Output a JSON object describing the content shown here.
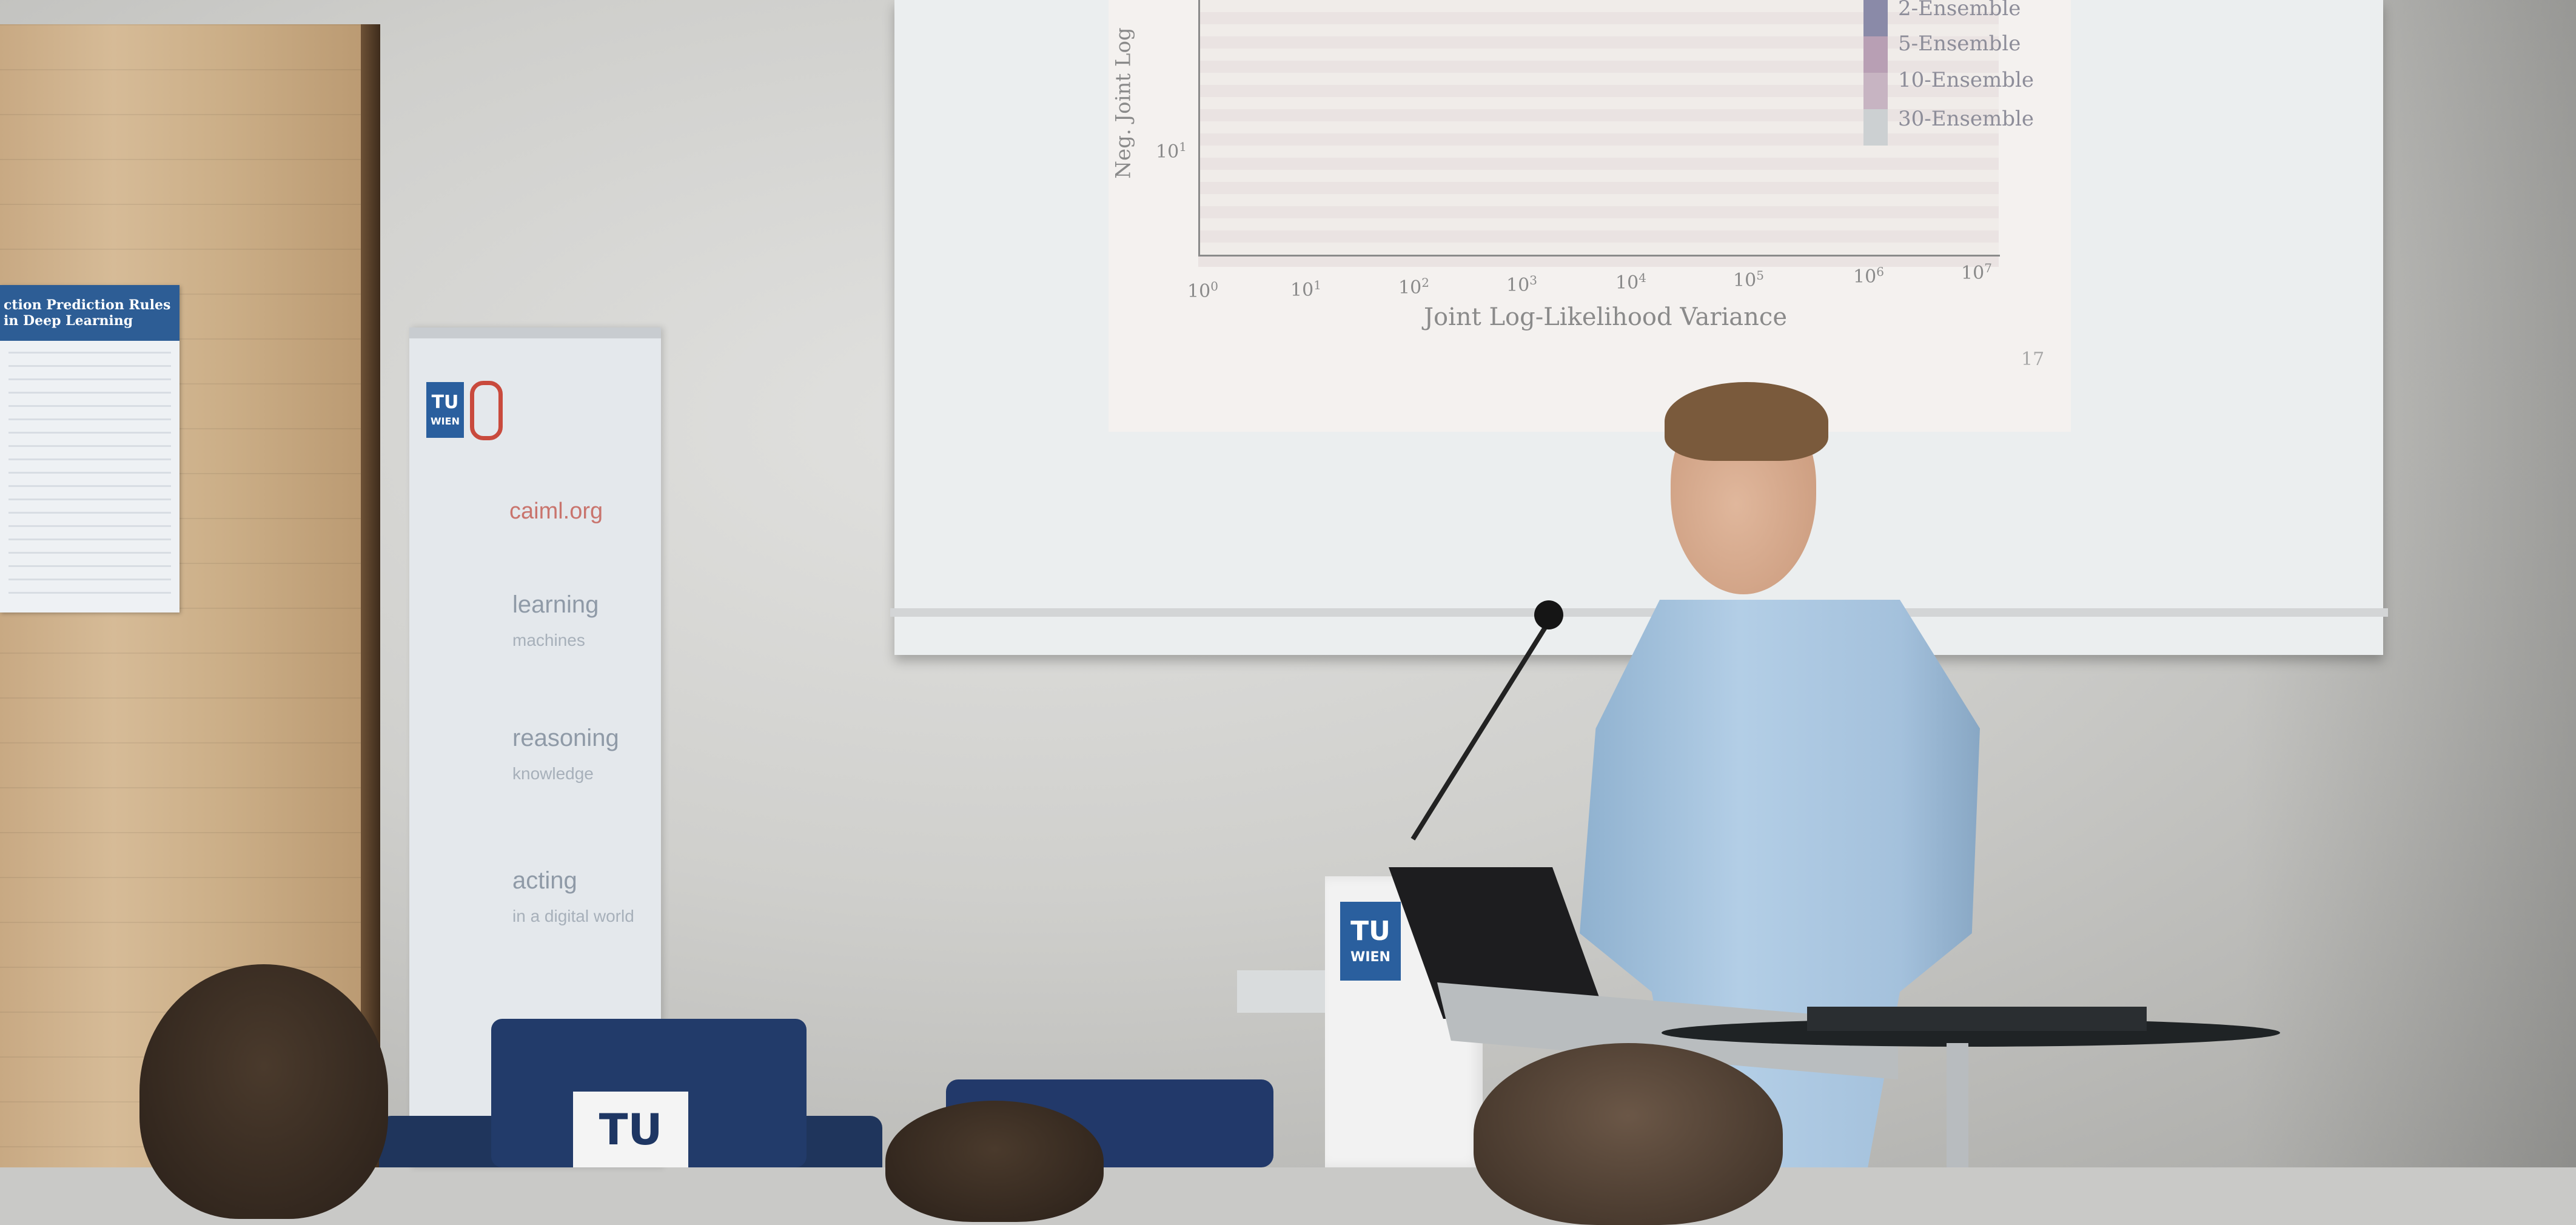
{
  "slide": {
    "ylabel": "Neg. Joint Log",
    "y_tick": "10",
    "y_tick_exp": "1",
    "xlabel": "Joint Log-Likelihood Variance",
    "x_ticks": [
      {
        "base": "10",
        "exp": "0"
      },
      {
        "base": "10",
        "exp": "1"
      },
      {
        "base": "10",
        "exp": "2"
      },
      {
        "base": "10",
        "exp": "3"
      },
      {
        "base": "10",
        "exp": "4"
      },
      {
        "base": "10",
        "exp": "5"
      },
      {
        "base": "10",
        "exp": "6"
      },
      {
        "base": "10",
        "exp": "7"
      }
    ],
    "legend": [
      "2-Ensemble",
      "5-Ensemble",
      "10-Ensemble",
      "30-Ensemble"
    ],
    "page_number": "17"
  },
  "banner": {
    "logo": {
      "top": "TU",
      "bottom": "WIEN"
    },
    "site": "caiml.org",
    "words": [
      {
        "word": "learning",
        "sub": "machines"
      },
      {
        "word": "reasoning",
        "sub": "knowledge"
      },
      {
        "word": "acting",
        "sub": "in a digital world"
      }
    ]
  },
  "poster": {
    "title": "ction Prediction Rules in Deep Learning"
  },
  "podium": {
    "logo": {
      "top": "TU",
      "bottom": "WIEN"
    }
  },
  "cushion": {
    "logo": "TU"
  },
  "colors": {
    "tu_blue": "#2a5f9e",
    "shirt": "#a9c6e0",
    "couch": "#223b6a"
  }
}
